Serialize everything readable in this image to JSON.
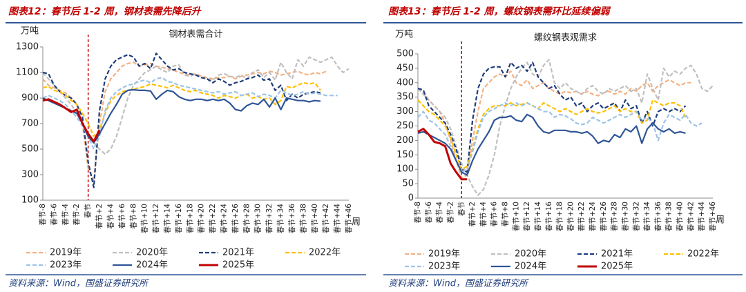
{
  "chart_data": [
    {
      "type": "line",
      "caption": "图表12：春节后 1-2 周，钢材表需先降后升",
      "title": "钢材表需合计",
      "ylabel": "万吨",
      "xlabel": "周",
      "source": "资料来源：Wind，国盛证券研究所",
      "categories": [
        "春节-8",
        null,
        "春节-6",
        null,
        "春节-4",
        null,
        "春节-2",
        null,
        "春节",
        null,
        "春节+2",
        null,
        "春节+4",
        null,
        "春节+6",
        null,
        "春节+8",
        null,
        "春节+10",
        null,
        "春节+12",
        null,
        "春节+14",
        null,
        "春节+16",
        null,
        "春节+18",
        null,
        "春节+20",
        null,
        "春节+22",
        null,
        "春节+24",
        null,
        "春节+26",
        null,
        "春节+28",
        null,
        "春节+30",
        null,
        "春节+32",
        null,
        "春节+34",
        null,
        "春节+36",
        null,
        "春节+38",
        null,
        "春节+40",
        null,
        "春节+42",
        null,
        "春节+44",
        null,
        "春节+46"
      ],
      "ylim": [
        100,
        1300
      ],
      "yticks": [
        100,
        300,
        500,
        700,
        900,
        1100,
        1300
      ],
      "marker_category": "春节",
      "series": [
        {
          "name": "2019年",
          "color": "#f4b183",
          "dash": true,
          "values": [
            1050,
            1000,
            980,
            960,
            940,
            900,
            850,
            700,
            350,
            250,
            700,
            950,
            1050,
            1100,
            1150,
            1170,
            1180,
            1150,
            1160,
            1170,
            1150,
            1140,
            1130,
            1120,
            1100,
            1090,
            1080,
            1090,
            1070,
            1060,
            1050,
            1060,
            1060,
            1070,
            1050,
            1070,
            1080,
            1090,
            1100,
            1090,
            1110,
            1100,
            1080,
            1090,
            1100,
            1110,
            1090,
            1080,
            1100,
            1090,
            1110,
            null,
            null,
            null,
            null
          ]
        },
        {
          "name": "2020年",
          "color": "#bfbfbf",
          "dash": true,
          "values": [
            1100,
            1050,
            1000,
            950,
            900,
            850,
            780,
            700,
            600,
            550,
            500,
            460,
            500,
            600,
            750,
            900,
            1000,
            1050,
            1100,
            1120,
            1150,
            1120,
            1100,
            1150,
            1160,
            1080,
            1070,
            1090,
            1060,
            1050,
            1040,
            1080,
            1090,
            1070,
            1060,
            1080,
            1050,
            1100,
            1120,
            1060,
            1100,
            1040,
            1180,
            1100,
            1050,
            1200,
            1150,
            1220,
            1200,
            1180,
            1200,
            1220,
            1150,
            1100,
            1130
          ]
        },
        {
          "name": "2021年",
          "color": "#1f3d7a",
          "dash": true,
          "values": [
            1100,
            1090,
            1000,
            950,
            920,
            900,
            850,
            750,
            400,
            200,
            800,
            1050,
            1150,
            1200,
            1220,
            1240,
            1220,
            1150,
            1170,
            1130,
            1250,
            1200,
            1150,
            1120,
            1130,
            1100,
            1090,
            1080,
            1060,
            1050,
            1020,
            1050,
            1030,
            1000,
            1020,
            1030,
            1050,
            1060,
            1080,
            1040,
            1050,
            960,
            1000,
            880,
            930,
            900,
            930,
            940,
            950,
            940,
            null,
            null,
            null,
            null,
            null
          ]
        },
        {
          "name": "2022年",
          "color": "#ffc000",
          "dash": true,
          "values": [
            980,
            990,
            960,
            950,
            920,
            880,
            850,
            780,
            700,
            600,
            650,
            780,
            880,
            920,
            950,
            960,
            970,
            980,
            990,
            1010,
            1000,
            990,
            980,
            1000,
            980,
            960,
            950,
            960,
            940,
            930,
            920,
            900,
            920,
            910,
            900,
            920,
            930,
            900,
            910,
            890,
            900,
            850,
            880,
            990,
            980,
            1000,
            1020,
            1010,
            1020,
            960,
            null,
            null,
            null,
            null,
            null
          ]
        },
        {
          "name": "2023年",
          "color": "#9dc3e6",
          "dash": true,
          "values": [
            900,
            920,
            900,
            880,
            850,
            800,
            750,
            680,
            600,
            500,
            600,
            800,
            900,
            950,
            980,
            1000,
            1010,
            1030,
            1040,
            1020,
            1050,
            1060,
            1030,
            1020,
            1000,
            990,
            980,
            970,
            960,
            950,
            940,
            950,
            930,
            940,
            950,
            920,
            930,
            940,
            910,
            930,
            920,
            900,
            960,
            940,
            920,
            930,
            950,
            930,
            940,
            930,
            920,
            920,
            920,
            null,
            null
          ]
        },
        {
          "name": "2024年",
          "color": "#2f5597",
          "dash": false,
          "values": [
            900,
            880,
            860,
            840,
            820,
            800,
            780,
            700,
            600,
            550,
            620,
            700,
            780,
            850,
            930,
            960,
            965,
            960,
            960,
            955,
            890,
            930,
            960,
            950,
            910,
            890,
            880,
            890,
            890,
            880,
            890,
            880,
            890,
            860,
            810,
            800,
            840,
            860,
            850,
            890,
            830,
            900,
            810,
            900,
            890,
            880,
            880,
            870,
            880,
            875,
            null,
            null,
            null,
            null,
            null
          ]
        },
        {
          "name": "2025年",
          "color": "#c00000",
          "dash": false,
          "values": [
            880,
            890,
            870,
            850,
            820,
            790,
            810,
            700,
            620,
            560,
            650,
            null,
            null,
            null,
            null,
            null,
            null,
            null,
            null,
            null,
            null,
            null,
            null,
            null,
            null,
            null,
            null,
            null,
            null,
            null,
            null,
            null,
            null,
            null,
            null,
            null,
            null,
            null,
            null,
            null,
            null,
            null,
            null,
            null,
            null,
            null,
            null,
            null,
            null,
            null,
            null,
            null,
            null,
            null,
            null
          ]
        }
      ]
    },
    {
      "type": "line",
      "caption": "图表13：春节后 1-2 周，螺纹钢表需环比延续偏弱",
      "title": "螺纹钢表观需求",
      "ylabel": "万吨",
      "xlabel": "周",
      "source": "资料来源：Wind，国盛证券研究所",
      "categories": [
        "春节-8",
        null,
        "春节-6",
        null,
        "春节-4",
        null,
        "春节-2",
        null,
        "春节",
        null,
        "春节+2",
        null,
        "春节+4",
        null,
        "春节+6",
        null,
        "春节+8",
        null,
        "春节+10",
        null,
        "春节+12",
        null,
        "春节+14",
        null,
        "春节+16",
        null,
        "春节+18",
        null,
        "春节+20",
        null,
        "春节+22",
        null,
        "春节+24",
        null,
        "春节+26",
        null,
        "春节+28",
        null,
        "春节+30",
        null,
        "春节+32",
        null,
        "春节+34",
        null,
        "春节+36",
        null,
        "春节+38",
        null,
        "春节+40",
        null,
        "春节+42",
        null,
        "春节+44",
        null,
        "春节+46"
      ],
      "ylim": [
        0,
        500
      ],
      "yticks": [
        0,
        50,
        100,
        150,
        200,
        250,
        300,
        350,
        400,
        450,
        500
      ],
      "marker_category": "春节",
      "series": [
        {
          "name": "2019年",
          "color": "#f4b183",
          "dash": true,
          "values": [
            380,
            370,
            340,
            320,
            300,
            260,
            200,
            130,
            70,
            80,
            200,
            300,
            380,
            400,
            420,
            430,
            420,
            440,
            400,
            390,
            410,
            380,
            390,
            400,
            380,
            370,
            360,
            370,
            365,
            370,
            360,
            370,
            360,
            355,
            365,
            370,
            360,
            370,
            360,
            380,
            370,
            390,
            400,
            370,
            390,
            400,
            410,
            400,
            390,
            400,
            400,
            null,
            null,
            null,
            null
          ]
        },
        {
          "name": "2020年",
          "color": "#bfbfbf",
          "dash": true,
          "values": [
            380,
            360,
            340,
            320,
            300,
            280,
            240,
            180,
            120,
            80,
            40,
            10,
            30,
            80,
            150,
            250,
            320,
            380,
            420,
            450,
            470,
            430,
            420,
            460,
            480,
            400,
            380,
            400,
            380,
            370,
            360,
            380,
            390,
            370,
            360,
            380,
            370,
            380,
            390,
            370,
            380,
            330,
            430,
            380,
            340,
            450,
            420,
            440,
            430,
            450,
            460,
            430,
            380,
            370,
            390
          ]
        },
        {
          "name": "2021年",
          "color": "#1f3d7a",
          "dash": true,
          "values": [
            380,
            375,
            320,
            300,
            280,
            260,
            220,
            170,
            100,
            90,
            270,
            380,
            430,
            450,
            455,
            455,
            420,
            470,
            450,
            460,
            440,
            470,
            420,
            400,
            380,
            390,
            360,
            340,
            350,
            320,
            330,
            300,
            320,
            330,
            310,
            320,
            330,
            300,
            340,
            310,
            320,
            260,
            300,
            250,
            300,
            310,
            300,
            310,
            300,
            320,
            null,
            null,
            null,
            null,
            null
          ]
        },
        {
          "name": "2022年",
          "color": "#ffc000",
          "dash": true,
          "values": [
            340,
            320,
            300,
            290,
            270,
            250,
            210,
            150,
            100,
            110,
            170,
            240,
            290,
            310,
            320,
            320,
            320,
            330,
            320,
            325,
            330,
            320,
            310,
            330,
            320,
            310,
            300,
            310,
            300,
            290,
            300,
            310,
            300,
            295,
            300,
            310,
            320,
            300,
            310,
            300,
            300,
            260,
            270,
            340,
            330,
            320,
            330,
            330,
            320,
            280,
            null,
            null,
            null,
            null,
            null
          ]
        },
        {
          "name": "2023年",
          "color": "#9dc3e6",
          "dash": true,
          "values": [
            280,
            300,
            270,
            260,
            240,
            220,
            180,
            130,
            90,
            100,
            160,
            230,
            280,
            300,
            310,
            320,
            330,
            320,
            330,
            320,
            330,
            320,
            310,
            300,
            300,
            280,
            290,
            285,
            275,
            260,
            255,
            260,
            280,
            270,
            260,
            270,
            280,
            290,
            280,
            290,
            300,
            270,
            280,
            260,
            200,
            260,
            290,
            280,
            270,
            290,
            260,
            250,
            260,
            null,
            null
          ]
        },
        {
          "name": "2024年",
          "color": "#2f5597",
          "dash": false,
          "values": [
            225,
            230,
            220,
            210,
            200,
            190,
            170,
            130,
            90,
            80,
            130,
            170,
            200,
            230,
            270,
            280,
            280,
            285,
            270,
            265,
            290,
            280,
            250,
            230,
            225,
            235,
            235,
            235,
            230,
            230,
            225,
            230,
            215,
            190,
            200,
            195,
            220,
            210,
            240,
            230,
            250,
            190,
            240,
            260,
            240,
            230,
            240,
            225,
            230,
            225,
            null,
            null,
            null,
            null,
            null
          ]
        },
        {
          "name": "2025年",
          "color": "#c00000",
          "dash": false,
          "values": [
            230,
            240,
            220,
            195,
            190,
            180,
            120,
            90,
            65,
            65,
            null,
            null,
            null,
            null,
            null,
            null,
            null,
            null,
            null,
            null,
            null,
            null,
            null,
            null,
            null,
            null,
            null,
            null,
            null,
            null,
            null,
            null,
            null,
            null,
            null,
            null,
            null,
            null,
            null,
            null,
            null,
            null,
            null,
            null,
            null,
            null,
            null,
            null,
            null,
            null,
            null,
            null,
            null,
            null,
            null
          ]
        }
      ]
    }
  ]
}
